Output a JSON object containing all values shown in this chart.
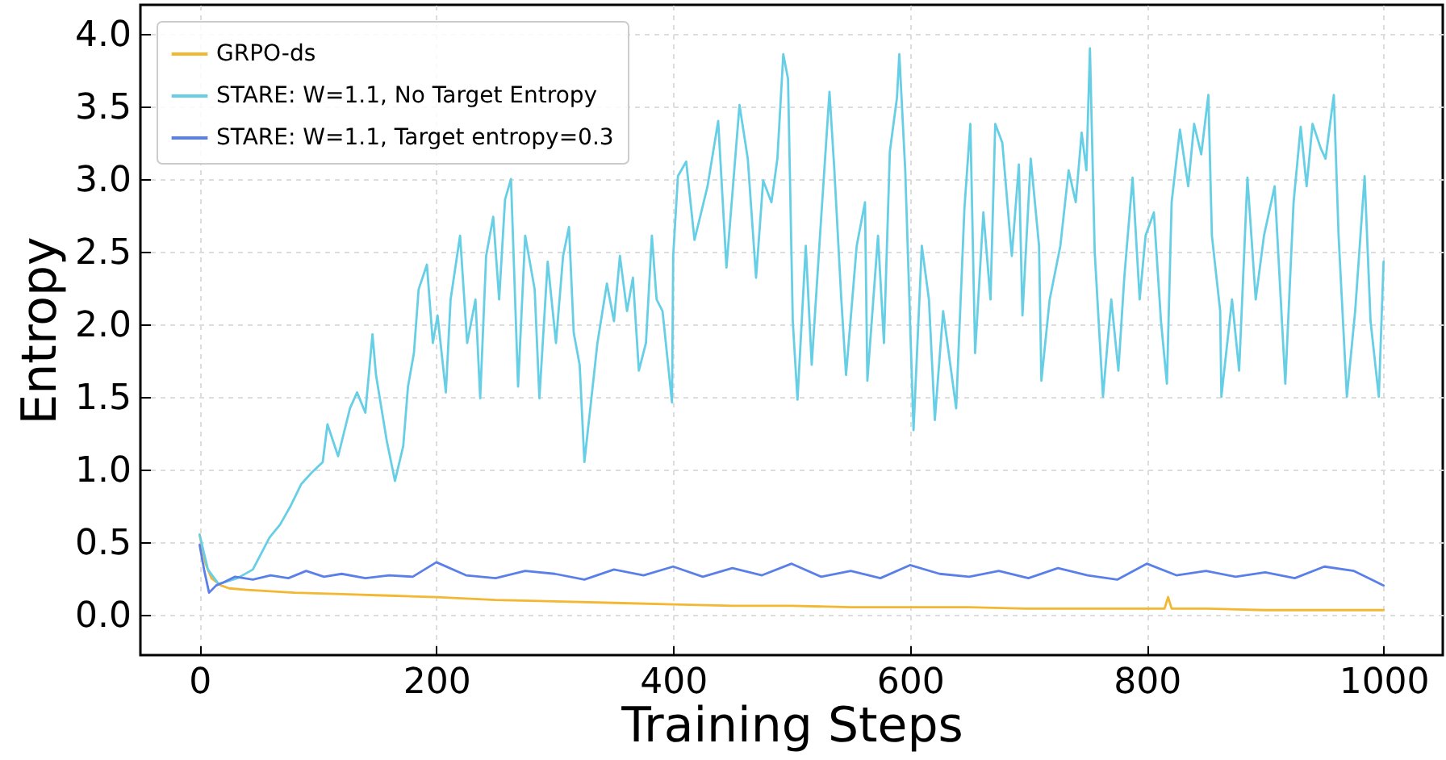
{
  "chart_data": {
    "type": "line",
    "xlabel": "Training Steps",
    "ylabel": "Entropy",
    "xlim": [
      -50,
      1050
    ],
    "ylim": [
      -0.28,
      4.2
    ],
    "xticks": [
      0,
      200,
      400,
      600,
      800,
      {
        "value": 1000,
        "label": "1000"
      }
    ],
    "yticks": [
      {
        "value": 0,
        "label": "0.0"
      },
      0.5,
      {
        "value": 1,
        "label": "1.0"
      },
      1.5,
      {
        "value": 2,
        "label": "2.0"
      },
      2.5,
      {
        "value": 3,
        "label": "3.0"
      },
      3.5,
      {
        "value": 4,
        "label": "4.0"
      }
    ],
    "grid": true,
    "legend": "top left",
    "line_style": "solid",
    "marker": "none",
    "series": [
      {
        "name": "GRPO-ds",
        "color": "#f4b731",
        "x": [
          0,
          5,
          10,
          18,
          25,
          40,
          60,
          80,
          120,
          160,
          200,
          250,
          300,
          350,
          400,
          450,
          500,
          550,
          600,
          650,
          700,
          750,
          800,
          815,
          818,
          821,
          850,
          900,
          950,
          1000
        ],
        "values": [
          0.55,
          0.35,
          0.25,
          0.2,
          0.18,
          0.17,
          0.16,
          0.15,
          0.14,
          0.13,
          0.12,
          0.1,
          0.09,
          0.08,
          0.07,
          0.06,
          0.06,
          0.05,
          0.05,
          0.05,
          0.04,
          0.04,
          0.04,
          0.04,
          0.12,
          0.04,
          0.04,
          0.03,
          0.03,
          0.03
        ]
      },
      {
        "name": "STARE: W=1.1, No Target Entropy",
        "color": "#66cfe6",
        "x": [
          0,
          7,
          16,
          32,
          45,
          59,
          68,
          77,
          86,
          95,
          104,
          108,
          117,
          127,
          133,
          140,
          146,
          149,
          158,
          165,
          172,
          176,
          181,
          185,
          192,
          197,
          201,
          208,
          212,
          220,
          226,
          233,
          237,
          242,
          248,
          253,
          258,
          263,
          269,
          275,
          283,
          287,
          294,
          301,
          307,
          312,
          316,
          321,
          325,
          332,
          336,
          344,
          350,
          355,
          361,
          366,
          371,
          377,
          382,
          386,
          391,
          399,
          400,
          404,
          411,
          418,
          429,
          438,
          445,
          456,
          463,
          470,
          476,
          483,
          488,
          493,
          497,
          501,
          505,
          512,
          517,
          524,
          532,
          536,
          542,
          546,
          555,
          562,
          564,
          573,
          578,
          583,
          589,
          591,
          596,
          603,
          610,
          616,
          621,
          628,
          639,
          646,
          651,
          655,
          662,
          668,
          672,
          678,
          686,
          692,
          695,
          702,
          709,
          711,
          718,
          727,
          734,
          740,
          745,
          749,
          752,
          756,
          763,
          770,
          776,
          781,
          788,
          794,
          799,
          806,
          812,
          817,
          821,
          828,
          835,
          840,
          846,
          852,
          855,
          862,
          863,
          872,
          878,
          885,
          892,
          899,
          908,
          917,
          924,
          930,
          935,
          940,
          947,
          951,
          958,
          962,
          969,
          976,
          984,
          989,
          996,
          1000
        ],
        "values": [
          0.55,
          0.31,
          0.21,
          0.25,
          0.31,
          0.53,
          0.62,
          0.75,
          0.9,
          0.98,
          1.05,
          1.31,
          1.09,
          1.42,
          1.53,
          1.39,
          1.93,
          1.65,
          1.2,
          0.92,
          1.16,
          1.57,
          1.8,
          2.24,
          2.41,
          1.87,
          2.06,
          1.53,
          2.17,
          2.61,
          1.87,
          2.17,
          1.49,
          2.47,
          2.74,
          2.17,
          2.86,
          3.0,
          1.57,
          2.61,
          2.24,
          1.49,
          2.43,
          1.87,
          2.47,
          2.67,
          1.94,
          1.72,
          1.05,
          1.57,
          1.87,
          2.28,
          2.02,
          2.47,
          2.09,
          2.32,
          1.68,
          1.87,
          2.61,
          2.17,
          2.09,
          1.46,
          2.47,
          3.02,
          3.12,
          2.58,
          2.95,
          3.4,
          2.39,
          3.51,
          3.14,
          2.32,
          2.99,
          2.84,
          3.14,
          3.86,
          3.69,
          2.02,
          1.48,
          2.54,
          1.72,
          2.61,
          3.6,
          3.08,
          2.17,
          1.65,
          2.54,
          2.84,
          1.61,
          2.61,
          1.87,
          3.19,
          3.56,
          3.86,
          3.06,
          1.27,
          2.54,
          2.17,
          1.34,
          2.09,
          1.42,
          2.8,
          3.38,
          1.8,
          2.77,
          2.17,
          3.38,
          3.25,
          2.47,
          3.1,
          2.06,
          3.14,
          2.54,
          1.61,
          2.17,
          2.54,
          3.06,
          2.84,
          3.32,
          3.06,
          3.9,
          2.5,
          1.5,
          2.17,
          1.68,
          2.32,
          3.01,
          2.17,
          2.61,
          2.77,
          2.02,
          1.59,
          2.84,
          3.34,
          2.95,
          3.38,
          3.17,
          3.58,
          2.61,
          2.09,
          1.5,
          2.17,
          1.68,
          3.01,
          2.17,
          2.61,
          2.95,
          1.59,
          2.84,
          3.36,
          2.95,
          3.38,
          3.21,
          3.14,
          3.58,
          2.61,
          1.5,
          2.09,
          3.02,
          2.02,
          1.5,
          2.43
        ]
      },
      {
        "name": "STARE: W=1.1, Target entropy=0.3",
        "color": "#5b7fe8",
        "x": [
          0,
          4,
          8,
          14,
          20,
          30,
          45,
          60,
          75,
          90,
          105,
          120,
          140,
          160,
          180,
          200,
          225,
          250,
          275,
          300,
          325,
          350,
          375,
          400,
          425,
          450,
          475,
          500,
          525,
          550,
          575,
          600,
          625,
          650,
          675,
          700,
          725,
          750,
          775,
          800,
          825,
          850,
          875,
          900,
          925,
          950,
          975,
          990,
          1000
        ],
        "values": [
          0.48,
          0.3,
          0.15,
          0.2,
          0.22,
          0.26,
          0.24,
          0.27,
          0.25,
          0.3,
          0.26,
          0.28,
          0.25,
          0.27,
          0.26,
          0.36,
          0.27,
          0.25,
          0.3,
          0.28,
          0.24,
          0.31,
          0.27,
          0.33,
          0.26,
          0.32,
          0.27,
          0.35,
          0.26,
          0.3,
          0.25,
          0.34,
          0.28,
          0.26,
          0.3,
          0.25,
          0.32,
          0.27,
          0.24,
          0.35,
          0.27,
          0.3,
          0.26,
          0.29,
          0.25,
          0.33,
          0.3,
          0.24,
          0.2
        ]
      }
    ]
  }
}
